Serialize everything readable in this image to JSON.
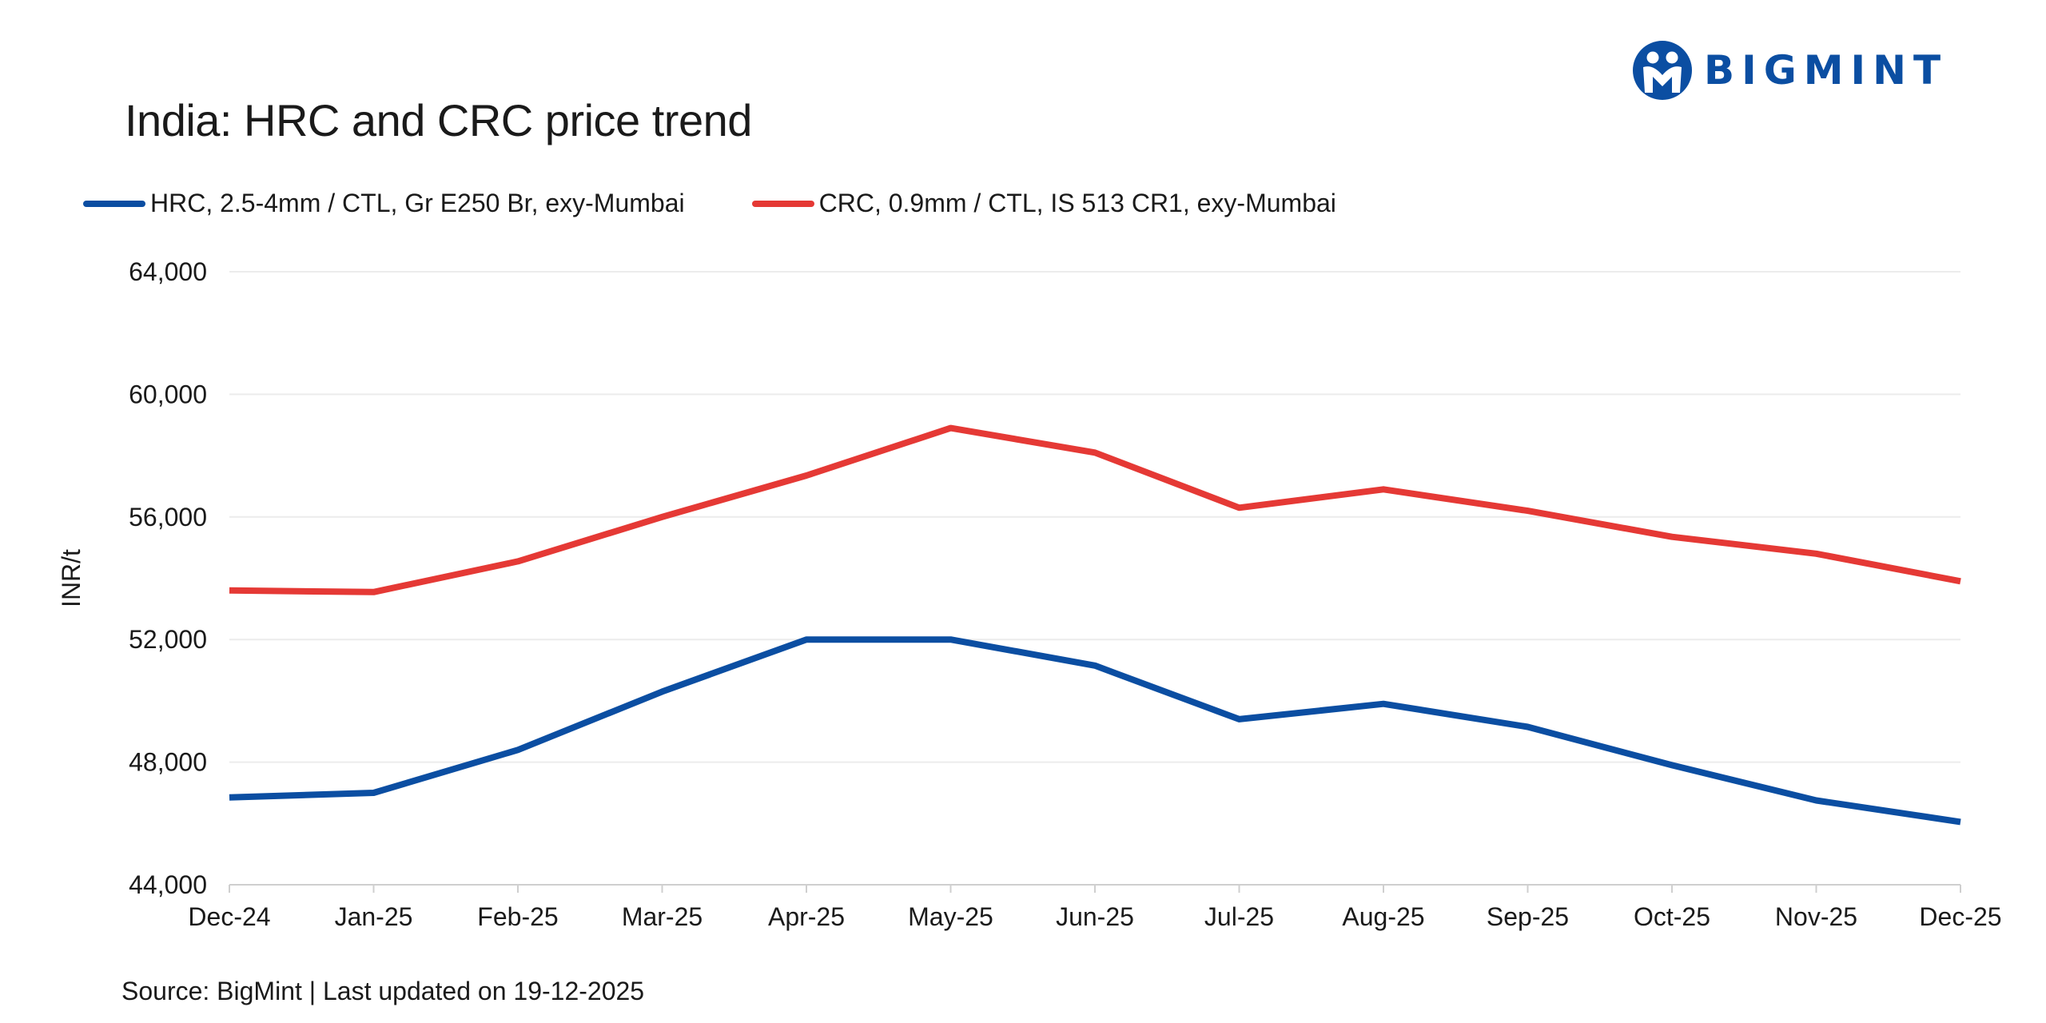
{
  "brand": {
    "name": "BIGMINT",
    "color": "#0b4ea2"
  },
  "source_text": "Source: BigMint | Last updated on  19-12-2025",
  "chart_data": {
    "type": "line",
    "title": "India: HRC and CRC price trend",
    "xlabel": "",
    "ylabel": "INR/t",
    "categories": [
      "Dec-24",
      "Jan-25",
      "Feb-25",
      "Mar-25",
      "Apr-25",
      "May-25",
      "Jun-25",
      "Jul-25",
      "Aug-25",
      "Sep-25",
      "Oct-25",
      "Nov-25",
      "Dec-25"
    ],
    "ylim": [
      44000,
      64000
    ],
    "yticks": [
      44000,
      48000,
      52000,
      56000,
      60000,
      64000
    ],
    "ytick_labels": [
      "44,000",
      "48,000",
      "52,000",
      "56,000",
      "60,000",
      "64,000"
    ],
    "grid": true,
    "legend_position": "top-left",
    "series": [
      {
        "name": "HRC, 2.5-4mm / CTL, Gr E250 Br, exy-Mumbai",
        "color": "#0b4ea2",
        "values": [
          46850,
          47000,
          48400,
          50300,
          52000,
          52000,
          51150,
          49400,
          49900,
          49150,
          47900,
          46750,
          46050
        ]
      },
      {
        "name": "CRC, 0.9mm / CTL, IS 513 CR1, exy-Mumbai",
        "color": "#e53935",
        "values": [
          53600,
          53550,
          54550,
          56000,
          57350,
          58900,
          58100,
          56300,
          56900,
          56200,
          55350,
          54800,
          53900
        ]
      }
    ]
  }
}
